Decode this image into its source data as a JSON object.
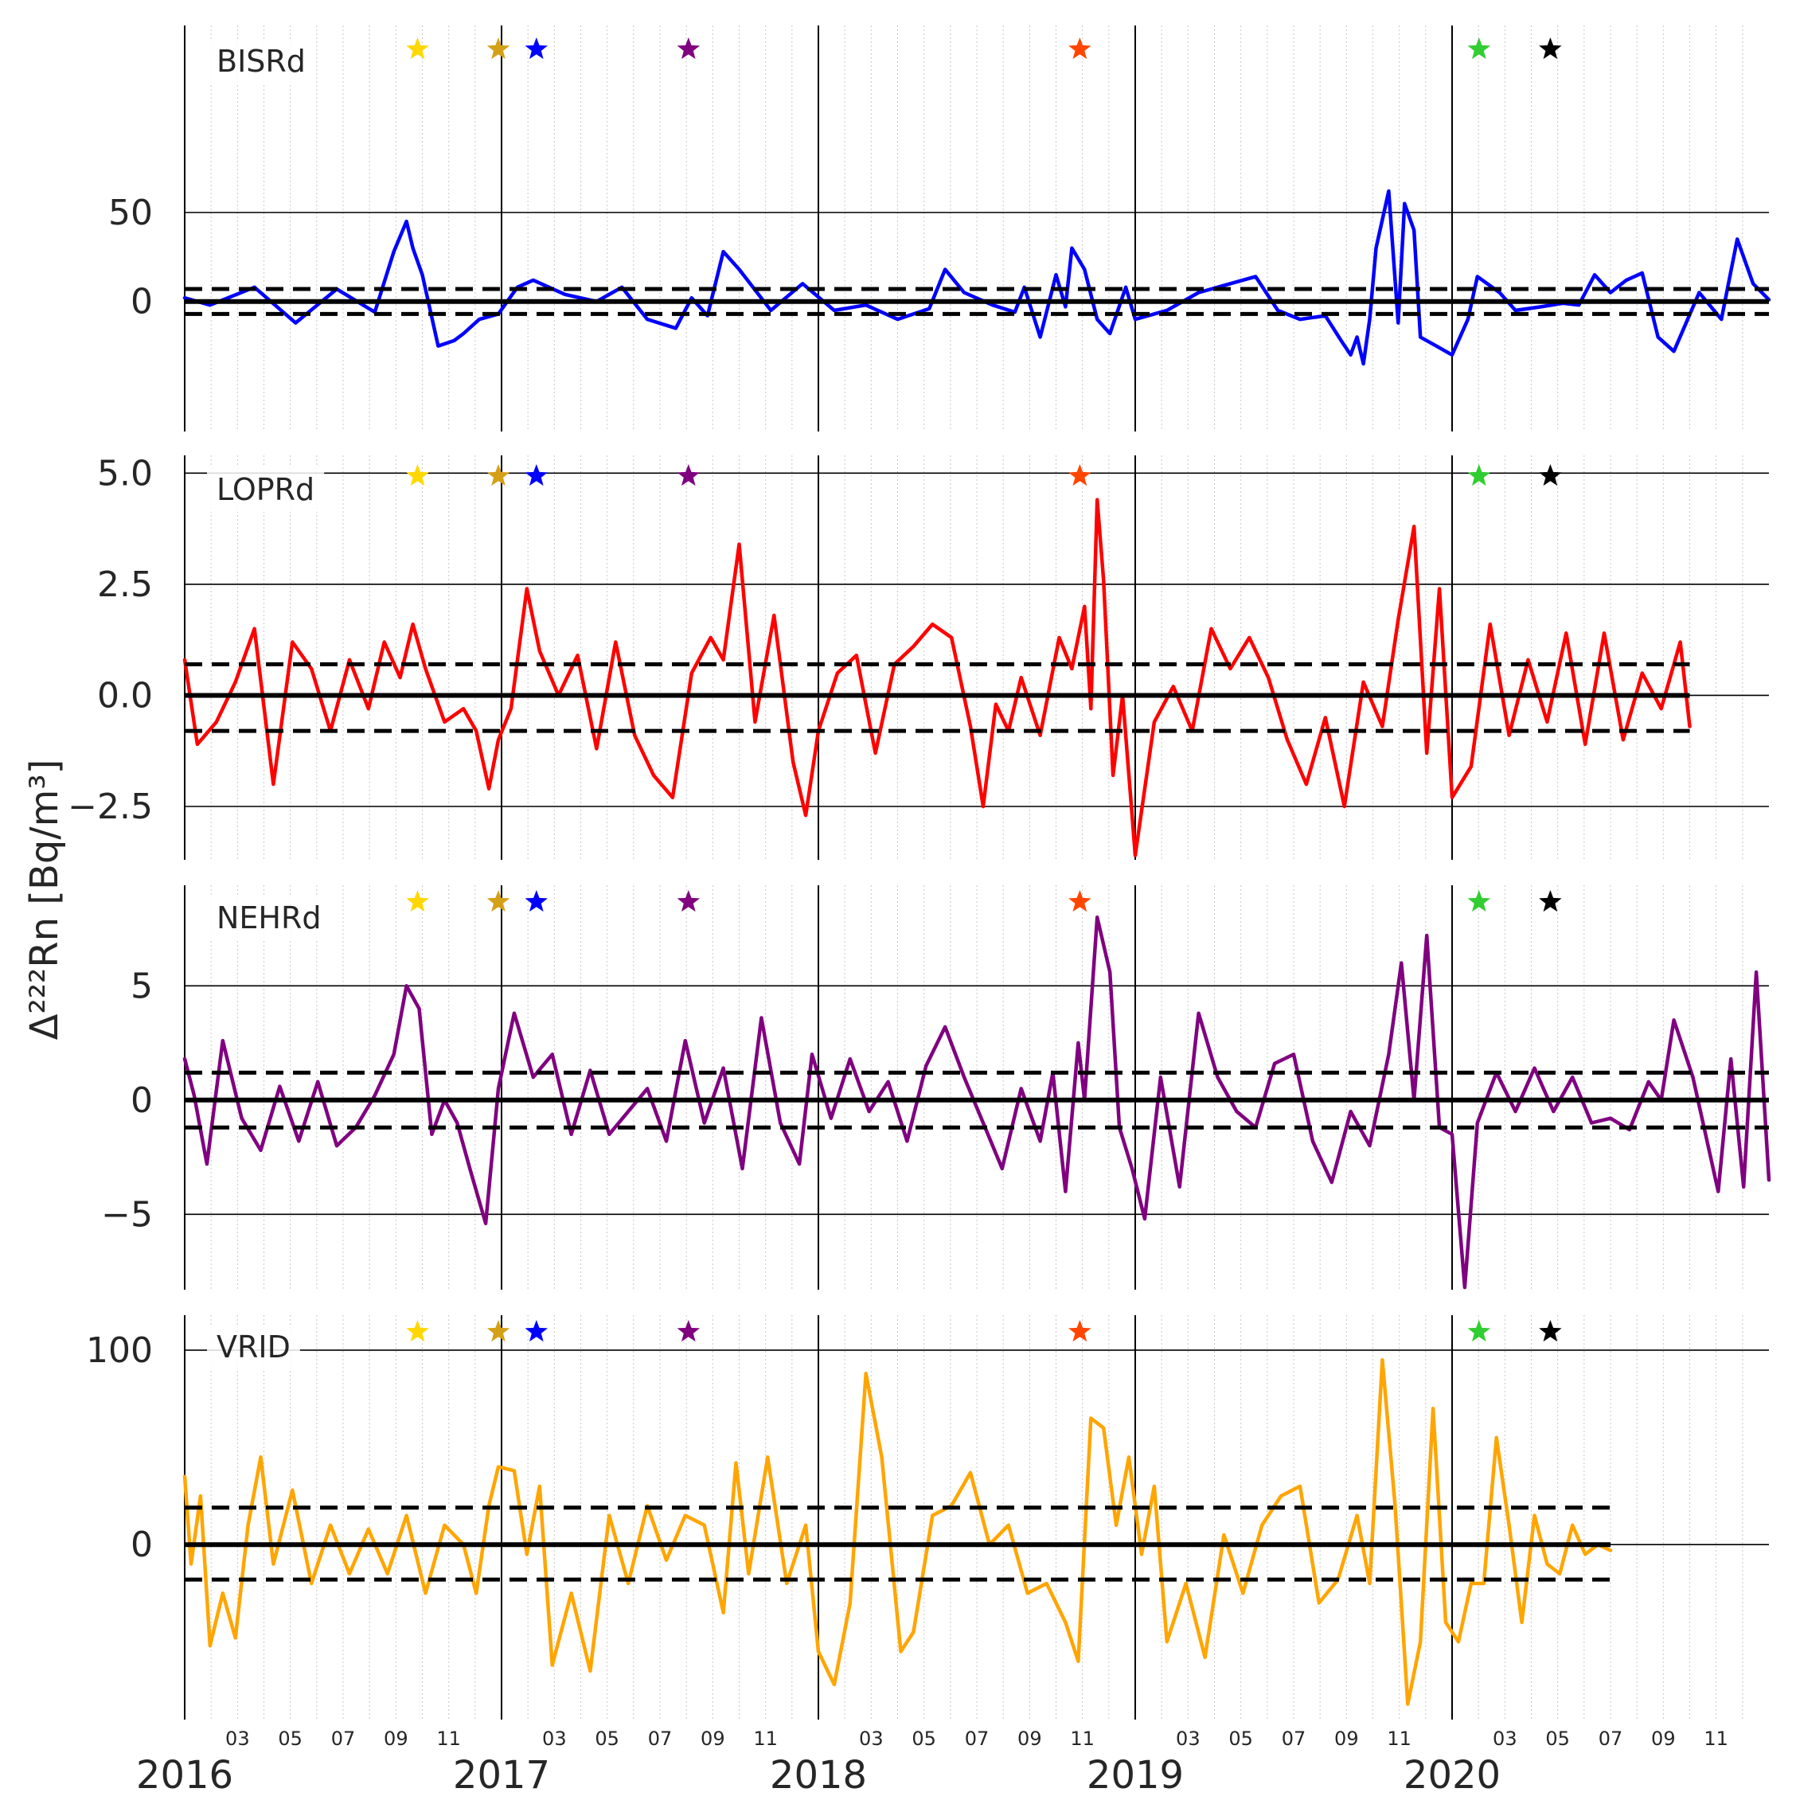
{
  "figure": {
    "ylabel": "Δ²²²Rn [Bq/m³]",
    "x_major_ticks": [
      {
        "label": "2016",
        "t": 2016.0
      },
      {
        "label": "2017",
        "t": 2017.0
      },
      {
        "label": "2018",
        "t": 2018.0
      },
      {
        "label": "2019",
        "t": 2019.0
      },
      {
        "label": "2020",
        "t": 2020.0
      }
    ],
    "x_minor_labels": [
      "03",
      "05",
      "07",
      "09",
      "11"
    ],
    "x_range": [
      2016.0,
      2021.0
    ],
    "colors": {
      "axis": "#000000",
      "minor_grid": "#c8c8c8",
      "tick_text": "#262626"
    }
  },
  "events": [
    {
      "t": 2016.735,
      "color": "#ffd700"
    },
    {
      "t": 2016.99,
      "color": "#d4a017"
    },
    {
      "t": 2017.11,
      "color": "#0000ff"
    },
    {
      "t": 2017.59,
      "color": "#800080"
    },
    {
      "t": 2018.825,
      "color": "#ff4500"
    },
    {
      "t": 2020.085,
      "color": "#32cd32"
    },
    {
      "t": 2020.31,
      "color": "#000000"
    }
  ],
  "chart_data": [
    {
      "type": "line",
      "name": "BISRd",
      "color": "#0000ff",
      "ylim": [
        -73,
        155
      ],
      "yticks": [
        {
          "label": "0",
          "v": 0
        },
        {
          "label": "50",
          "v": 50
        }
      ],
      "threshold": [
        7,
        -7
      ],
      "end_t": 2021.0,
      "x": [
        2016.0,
        2016.08,
        2016.22,
        2016.35,
        2016.48,
        2016.6,
        2016.66,
        2016.7,
        2016.72,
        2016.75,
        2016.8,
        2016.85,
        2016.88,
        2016.93,
        2016.99,
        2017.05,
        2017.1,
        2017.2,
        2017.3,
        2017.38,
        2017.46,
        2017.55,
        2017.6,
        2017.65,
        2017.7,
        2017.75,
        2017.85,
        2017.95,
        2018.05,
        2018.15,
        2018.25,
        2018.35,
        2018.4,
        2018.46,
        2018.55,
        2018.62,
        2018.65,
        2018.7,
        2018.75,
        2018.78,
        2018.8,
        2018.84,
        2018.88,
        2018.92,
        2018.97,
        2019.0,
        2019.1,
        2019.2,
        2019.3,
        2019.38,
        2019.45,
        2019.52,
        2019.6,
        2019.65,
        2019.68,
        2019.7,
        2019.72,
        2019.74,
        2019.76,
        2019.8,
        2019.83,
        2019.85,
        2019.88,
        2019.9,
        2019.95,
        2020.0,
        2020.05,
        2020.08,
        2020.15,
        2020.2,
        2020.28,
        2020.35,
        2020.4,
        2020.45,
        2020.5,
        2020.55,
        2020.6,
        2020.65,
        2020.7,
        2020.78,
        2020.85,
        2020.9,
        2020.95,
        2021.0
      ],
      "y": [
        2,
        -2,
        8,
        -12,
        7,
        -6,
        28,
        45,
        30,
        15,
        -25,
        -22,
        -18,
        -10,
        -7,
        8,
        12,
        4,
        0,
        8,
        -10,
        -15,
        2,
        -8,
        28,
        18,
        -5,
        10,
        -5,
        -2,
        -10,
        -4,
        18,
        5,
        -2,
        -6,
        8,
        -20,
        15,
        -3,
        30,
        18,
        -10,
        -18,
        8,
        -10,
        -5,
        5,
        10,
        14,
        -5,
        -10,
        -8,
        -22,
        -30,
        -20,
        -35,
        -10,
        30,
        62,
        -12,
        55,
        40,
        -20,
        -25,
        -30,
        -10,
        14,
        5,
        -5,
        -3,
        -1,
        -2,
        15,
        5,
        12,
        16,
        -20,
        -28,
        5,
        -10,
        35,
        10,
        1
      ]
    },
    {
      "type": "line",
      "name": "LOPRd",
      "color": "#ff0000",
      "ylim": [
        -3.7,
        5.4
      ],
      "yticks": [
        {
          "label": "−2.5",
          "v": -2.5
        },
        {
          "label": "0.0",
          "v": 0
        },
        {
          "label": "2.5",
          "v": 2.5
        },
        {
          "label": "5.0",
          "v": 5
        }
      ],
      "threshold": [
        0.7,
        -0.8
      ],
      "end_t": 2020.75,
      "x": [
        2016.0,
        2016.04,
        2016.1,
        2016.16,
        2016.22,
        2016.28,
        2016.34,
        2016.4,
        2016.46,
        2016.52,
        2016.58,
        2016.63,
        2016.68,
        2016.72,
        2016.76,
        2016.82,
        2016.88,
        2016.92,
        2016.96,
        2016.99,
        2017.03,
        2017.08,
        2017.12,
        2017.18,
        2017.24,
        2017.3,
        2017.36,
        2017.42,
        2017.48,
        2017.54,
        2017.6,
        2017.66,
        2017.7,
        2017.75,
        2017.8,
        2017.86,
        2017.92,
        2017.96,
        2018.0,
        2018.06,
        2018.12,
        2018.18,
        2018.24,
        2018.3,
        2018.36,
        2018.42,
        2018.48,
        2018.52,
        2018.56,
        2018.6,
        2018.64,
        2018.7,
        2018.76,
        2018.8,
        2018.84,
        2018.86,
        2018.88,
        2018.9,
        2018.93,
        2018.96,
        2019.0,
        2019.06,
        2019.12,
        2019.18,
        2019.24,
        2019.3,
        2019.36,
        2019.42,
        2019.48,
        2019.54,
        2019.6,
        2019.66,
        2019.72,
        2019.78,
        2019.83,
        2019.88,
        2019.92,
        2019.96,
        2020.0,
        2020.06,
        2020.12,
        2020.18,
        2020.24,
        2020.3,
        2020.36,
        2020.42,
        2020.48,
        2020.54,
        2020.6,
        2020.66,
        2020.72,
        2020.75
      ],
      "y": [
        0.8,
        -1.1,
        -0.6,
        0.3,
        1.5,
        -2.0,
        1.2,
        0.6,
        -0.8,
        0.8,
        -0.3,
        1.2,
        0.4,
        1.6,
        0.6,
        -0.6,
        -0.3,
        -0.8,
        -2.1,
        -1.0,
        -0.3,
        2.4,
        1.0,
        0.0,
        0.9,
        -1.2,
        1.2,
        -0.9,
        -1.8,
        -2.3,
        0.5,
        1.3,
        0.8,
        3.4,
        -0.6,
        1.8,
        -1.5,
        -2.7,
        -0.8,
        0.5,
        0.9,
        -1.3,
        0.7,
        1.1,
        1.6,
        1.3,
        -0.7,
        -2.5,
        -0.2,
        -0.8,
        0.4,
        -0.9,
        1.3,
        0.6,
        2.0,
        -0.3,
        4.4,
        2.6,
        -1.8,
        0.0,
        -3.6,
        -0.6,
        0.2,
        -0.8,
        1.5,
        0.6,
        1.3,
        0.4,
        -1.0,
        -2.0,
        -0.5,
        -2.5,
        0.3,
        -0.7,
        1.7,
        3.8,
        -1.3,
        2.4,
        -2.3,
        -1.6,
        1.6,
        -0.9,
        0.8,
        -0.6,
        1.4,
        -1.1,
        1.4,
        -1.0,
        0.5,
        -0.3,
        1.2,
        -0.7
      ]
    },
    {
      "type": "line",
      "name": "NEHRd",
      "color": "#800080",
      "ylim": [
        -8.3,
        9.4
      ],
      "yticks": [
        {
          "label": "−5",
          "v": -5
        },
        {
          "label": "0",
          "v": 0
        },
        {
          "label": "5",
          "v": 5
        }
      ],
      "threshold": [
        1.2,
        -1.2
      ],
      "end_t": 2021.0,
      "x": [
        2016.0,
        2016.03,
        2016.07,
        2016.12,
        2016.18,
        2016.24,
        2016.3,
        2016.36,
        2016.42,
        2016.48,
        2016.54,
        2016.6,
        2016.66,
        2016.7,
        2016.74,
        2016.78,
        2016.82,
        2016.86,
        2016.9,
        2016.95,
        2016.99,
        2017.04,
        2017.1,
        2017.16,
        2017.22,
        2017.28,
        2017.34,
        2017.4,
        2017.46,
        2017.52,
        2017.58,
        2017.64,
        2017.7,
        2017.76,
        2017.82,
        2017.88,
        2017.94,
        2017.98,
        2018.04,
        2018.1,
        2018.16,
        2018.22,
        2018.28,
        2018.34,
        2018.4,
        2018.46,
        2018.52,
        2018.58,
        2018.64,
        2018.7,
        2018.74,
        2018.78,
        2018.82,
        2018.84,
        2018.88,
        2018.92,
        2018.95,
        2018.99,
        2019.03,
        2019.08,
        2019.14,
        2019.2,
        2019.26,
        2019.32,
        2019.38,
        2019.44,
        2019.5,
        2019.56,
        2019.62,
        2019.68,
        2019.74,
        2019.8,
        2019.84,
        2019.88,
        2019.92,
        2019.96,
        2020.0,
        2020.04,
        2020.08,
        2020.14,
        2020.2,
        2020.26,
        2020.32,
        2020.38,
        2020.44,
        2020.5,
        2020.56,
        2020.62,
        2020.66,
        2020.7,
        2020.76,
        2020.8,
        2020.84,
        2020.88,
        2020.92,
        2020.96,
        2021.0
      ],
      "y": [
        1.8,
        0.2,
        -2.8,
        2.6,
        -0.8,
        -2.2,
        0.6,
        -1.8,
        0.8,
        -2.0,
        -1.2,
        0.2,
        2.0,
        5.0,
        4.0,
        -1.5,
        0.0,
        -1.0,
        -3.0,
        -5.4,
        0.5,
        3.8,
        1.0,
        2.0,
        -1.5,
        1.3,
        -1.5,
        -0.5,
        0.5,
        -1.8,
        2.6,
        -1.0,
        1.4,
        -3.0,
        3.6,
        -1.0,
        -2.8,
        2.0,
        -0.8,
        1.8,
        -0.5,
        0.8,
        -1.8,
        1.5,
        3.2,
        1.0,
        -1.0,
        -3.0,
        0.5,
        -1.8,
        1.2,
        -4.0,
        2.5,
        0.0,
        8.0,
        5.6,
        -1.2,
        -3.0,
        -5.2,
        1.0,
        -3.8,
        3.8,
        1.0,
        -0.5,
        -1.2,
        1.6,
        2.0,
        -1.8,
        -3.6,
        -0.5,
        -2.0,
        2.0,
        6.0,
        0.0,
        7.2,
        -1.2,
        -1.5,
        -8.2,
        -1.0,
        1.2,
        -0.5,
        1.4,
        -0.5,
        1.0,
        -1.0,
        -0.8,
        -1.3,
        0.8,
        0.0,
        3.5,
        1.0,
        -1.5,
        -4.0,
        1.8,
        -3.8,
        5.6,
        -3.5
      ]
    },
    {
      "type": "line",
      "name": "VRID",
      "color": "#ffa500",
      "ylim": [
        -90,
        118
      ],
      "yticks": [
        {
          "label": "0",
          "v": 0
        },
        {
          "label": "100",
          "v": 100
        }
      ],
      "threshold": [
        19,
        -18
      ],
      "end_t": 2020.5,
      "x": [
        2016.0,
        2016.02,
        2016.05,
        2016.08,
        2016.12,
        2016.16,
        2016.2,
        2016.24,
        2016.28,
        2016.34,
        2016.4,
        2016.46,
        2016.52,
        2016.58,
        2016.64,
        2016.7,
        2016.76,
        2016.82,
        2016.88,
        2016.92,
        2016.96,
        2016.99,
        2017.04,
        2017.08,
        2017.12,
        2017.16,
        2017.22,
        2017.28,
        2017.34,
        2017.4,
        2017.46,
        2017.52,
        2017.58,
        2017.64,
        2017.7,
        2017.74,
        2017.78,
        2017.84,
        2017.9,
        2017.96,
        2018.0,
        2018.05,
        2018.1,
        2018.15,
        2018.2,
        2018.26,
        2018.3,
        2018.36,
        2018.42,
        2018.48,
        2018.54,
        2018.6,
        2018.66,
        2018.72,
        2018.78,
        2018.82,
        2018.86,
        2018.9,
        2018.94,
        2018.98,
        2019.02,
        2019.06,
        2019.1,
        2019.16,
        2019.22,
        2019.28,
        2019.34,
        2019.4,
        2019.46,
        2019.52,
        2019.58,
        2019.64,
        2019.7,
        2019.74,
        2019.78,
        2019.82,
        2019.86,
        2019.9,
        2019.94,
        2019.98,
        2020.02,
        2020.06,
        2020.1,
        2020.14,
        2020.18,
        2020.22,
        2020.26,
        2020.3,
        2020.34,
        2020.38,
        2020.42,
        2020.46,
        2020.5
      ],
      "y": [
        35,
        -10,
        25,
        -52,
        -25,
        -48,
        10,
        45,
        -10,
        28,
        -20,
        10,
        -15,
        8,
        -15,
        15,
        -25,
        10,
        0,
        -25,
        20,
        40,
        38,
        -5,
        30,
        -62,
        -25,
        -65,
        15,
        -20,
        20,
        -8,
        15,
        10,
        -35,
        42,
        -15,
        45,
        -20,
        10,
        -55,
        -72,
        -30,
        88,
        45,
        -55,
        -45,
        15,
        20,
        37,
        0,
        10,
        -25,
        -20,
        -40,
        -60,
        65,
        60,
        10,
        45,
        -5,
        30,
        -50,
        -20,
        -58,
        5,
        -25,
        10,
        25,
        30,
        -30,
        -18,
        15,
        -20,
        95,
        20,
        -82,
        -50,
        70,
        -40,
        -50,
        -20,
        -20,
        55,
        10,
        -40,
        15,
        -10,
        -15,
        10,
        -5,
        0,
        -3
      ]
    }
  ]
}
